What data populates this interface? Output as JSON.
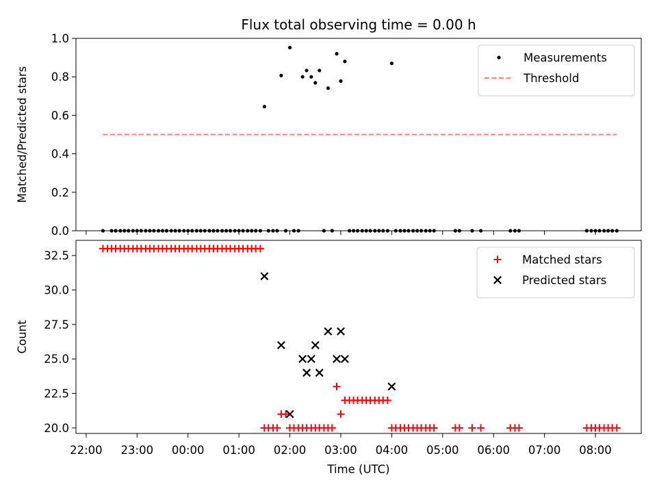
{
  "chart_data": {
    "title": "Flux total observing time = 0.00 h",
    "xlabel": "Time (UTC)",
    "x_tick_labels": [
      "22:00",
      "23:00",
      "00:00",
      "01:00",
      "02:00",
      "03:00",
      "04:00",
      "05:00",
      "06:00",
      "07:00",
      "08:00"
    ],
    "x_ticks_hours": [
      22,
      23,
      24,
      25,
      26,
      27,
      28,
      29,
      30,
      31,
      32
    ],
    "x_range_hours": [
      21.8,
      32.9
    ],
    "panels": [
      {
        "type": "scatter",
        "ylabel": "Matched/Predicted stars",
        "ylim": [
          0.0,
          1.0
        ],
        "y_ticks": [
          0.0,
          0.2,
          0.4,
          0.6,
          0.8,
          1.0
        ],
        "y_tick_labels": [
          "0.0",
          "0.2",
          "0.4",
          "0.6",
          "0.8",
          "1.0"
        ],
        "legend_position": "top-right",
        "series": [
          {
            "name": "Measurements",
            "marker": "dot",
            "color": "#000000",
            "points": [
              [
                22.33,
                0
              ],
              [
                22.5,
                0
              ],
              [
                22.58,
                0
              ],
              [
                22.67,
                0
              ],
              [
                22.75,
                0
              ],
              [
                22.83,
                0
              ],
              [
                22.92,
                0
              ],
              [
                23.0,
                0
              ],
              [
                23.08,
                0
              ],
              [
                23.17,
                0
              ],
              [
                23.25,
                0
              ],
              [
                23.33,
                0
              ],
              [
                23.42,
                0
              ],
              [
                23.5,
                0
              ],
              [
                23.58,
                0
              ],
              [
                23.67,
                0
              ],
              [
                23.75,
                0
              ],
              [
                23.83,
                0
              ],
              [
                23.92,
                0
              ],
              [
                24.0,
                0
              ],
              [
                24.08,
                0
              ],
              [
                24.17,
                0
              ],
              [
                24.25,
                0
              ],
              [
                24.33,
                0
              ],
              [
                24.42,
                0
              ],
              [
                24.5,
                0
              ],
              [
                24.58,
                0
              ],
              [
                24.67,
                0
              ],
              [
                24.75,
                0
              ],
              [
                24.83,
                0
              ],
              [
                24.92,
                0
              ],
              [
                25.0,
                0
              ],
              [
                25.08,
                0
              ],
              [
                25.17,
                0
              ],
              [
                25.25,
                0
              ],
              [
                25.33,
                0
              ],
              [
                25.42,
                0
              ],
              [
                25.5,
                0.645
              ],
              [
                25.58,
                0
              ],
              [
                25.67,
                0
              ],
              [
                25.75,
                0
              ],
              [
                25.83,
                0.807
              ],
              [
                25.92,
                0
              ],
              [
                26.0,
                0.952
              ],
              [
                26.08,
                0
              ],
              [
                26.17,
                0
              ],
              [
                26.25,
                0.8
              ],
              [
                26.33,
                0.833
              ],
              [
                26.42,
                0.8
              ],
              [
                26.5,
                0.769
              ],
              [
                26.58,
                0.833
              ],
              [
                26.67,
                0
              ],
              [
                26.75,
                0.741
              ],
              [
                26.83,
                0
              ],
              [
                26.92,
                0.92
              ],
              [
                27.0,
                0.778
              ],
              [
                27.08,
                0.88
              ],
              [
                27.17,
                0
              ],
              [
                27.25,
                0
              ],
              [
                27.33,
                0
              ],
              [
                27.42,
                0
              ],
              [
                27.5,
                0
              ],
              [
                27.58,
                0
              ],
              [
                27.67,
                0
              ],
              [
                27.75,
                0
              ],
              [
                27.83,
                0
              ],
              [
                27.92,
                0
              ],
              [
                28.0,
                0.87
              ],
              [
                28.08,
                0
              ],
              [
                28.17,
                0
              ],
              [
                28.25,
                0
              ],
              [
                28.33,
                0
              ],
              [
                28.42,
                0
              ],
              [
                28.5,
                0
              ],
              [
                28.58,
                0
              ],
              [
                28.67,
                0
              ],
              [
                28.75,
                0
              ],
              [
                28.83,
                0
              ],
              [
                29.25,
                0
              ],
              [
                29.33,
                0
              ],
              [
                29.58,
                0
              ],
              [
                29.75,
                0
              ],
              [
                30.33,
                0
              ],
              [
                30.42,
                0
              ],
              [
                30.5,
                0
              ],
              [
                31.83,
                0
              ],
              [
                31.92,
                0
              ],
              [
                32.0,
                0
              ],
              [
                32.08,
                0
              ],
              [
                32.17,
                0
              ],
              [
                32.25,
                0
              ],
              [
                32.33,
                0
              ],
              [
                32.42,
                0
              ]
            ]
          },
          {
            "name": "Threshold",
            "type": "line",
            "style": "dashed",
            "color": "#ff7f7f",
            "points": [
              [
                22.33,
                0.5
              ],
              [
                32.42,
                0.5
              ]
            ]
          }
        ]
      },
      {
        "type": "scatter",
        "ylabel": "Count",
        "ylim": [
          19.6,
          33.6
        ],
        "y_ticks": [
          20.0,
          22.5,
          25.0,
          27.5,
          30.0,
          32.5
        ],
        "y_tick_labels": [
          "20.0",
          "22.5",
          "25.0",
          "27.5",
          "30.0",
          "32.5"
        ],
        "legend_position": "top-right",
        "series": [
          {
            "name": "Matched stars",
            "marker": "plus",
            "color": "#ff0000",
            "points": [
              [
                22.33,
                33
              ],
              [
                22.42,
                33
              ],
              [
                22.5,
                33
              ],
              [
                22.58,
                33
              ],
              [
                22.67,
                33
              ],
              [
                22.75,
                33
              ],
              [
                22.83,
                33
              ],
              [
                22.92,
                33
              ],
              [
                23.0,
                33
              ],
              [
                23.08,
                33
              ],
              [
                23.17,
                33
              ],
              [
                23.25,
                33
              ],
              [
                23.33,
                33
              ],
              [
                23.42,
                33
              ],
              [
                23.5,
                33
              ],
              [
                23.58,
                33
              ],
              [
                23.67,
                33
              ],
              [
                23.75,
                33
              ],
              [
                23.83,
                33
              ],
              [
                23.92,
                33
              ],
              [
                24.0,
                33
              ],
              [
                24.08,
                33
              ],
              [
                24.17,
                33
              ],
              [
                24.25,
                33
              ],
              [
                24.33,
                33
              ],
              [
                24.42,
                33
              ],
              [
                24.5,
                33
              ],
              [
                24.58,
                33
              ],
              [
                24.67,
                33
              ],
              [
                24.75,
                33
              ],
              [
                24.83,
                33
              ],
              [
                24.92,
                33
              ],
              [
                25.0,
                33
              ],
              [
                25.08,
                33
              ],
              [
                25.17,
                33
              ],
              [
                25.25,
                33
              ],
              [
                25.33,
                33
              ],
              [
                25.42,
                33
              ],
              [
                25.5,
                20
              ],
              [
                25.58,
                20
              ],
              [
                25.67,
                20
              ],
              [
                25.75,
                20
              ],
              [
                25.83,
                21
              ],
              [
                25.92,
                21
              ],
              [
                26.0,
                20
              ],
              [
                26.08,
                20
              ],
              [
                26.17,
                20
              ],
              [
                26.25,
                20
              ],
              [
                26.33,
                20
              ],
              [
                26.42,
                20
              ],
              [
                26.5,
                20
              ],
              [
                26.58,
                20
              ],
              [
                26.67,
                20
              ],
              [
                26.75,
                20
              ],
              [
                26.83,
                20
              ],
              [
                26.92,
                23
              ],
              [
                27.0,
                21
              ],
              [
                27.08,
                22
              ],
              [
                27.17,
                22
              ],
              [
                27.25,
                22
              ],
              [
                27.33,
                22
              ],
              [
                27.42,
                22
              ],
              [
                27.5,
                22
              ],
              [
                27.58,
                22
              ],
              [
                27.67,
                22
              ],
              [
                27.75,
                22
              ],
              [
                27.83,
                22
              ],
              [
                27.92,
                22
              ],
              [
                28.0,
                20
              ],
              [
                28.08,
                20
              ],
              [
                28.17,
                20
              ],
              [
                28.25,
                20
              ],
              [
                28.33,
                20
              ],
              [
                28.42,
                20
              ],
              [
                28.5,
                20
              ],
              [
                28.58,
                20
              ],
              [
                28.67,
                20
              ],
              [
                28.75,
                20
              ],
              [
                28.83,
                20
              ],
              [
                29.25,
                20
              ],
              [
                29.33,
                20
              ],
              [
                29.58,
                20
              ],
              [
                29.75,
                20
              ],
              [
                30.33,
                20
              ],
              [
                30.42,
                20
              ],
              [
                30.5,
                20
              ],
              [
                31.83,
                20
              ],
              [
                31.92,
                20
              ],
              [
                32.0,
                20
              ],
              [
                32.08,
                20
              ],
              [
                32.17,
                20
              ],
              [
                32.25,
                20
              ],
              [
                32.33,
                20
              ],
              [
                32.42,
                20
              ]
            ]
          },
          {
            "name": "Predicted stars",
            "marker": "x",
            "color": "#000000",
            "points": [
              [
                25.5,
                31
              ],
              [
                25.83,
                26
              ],
              [
                26.0,
                21
              ],
              [
                26.25,
                25
              ],
              [
                26.33,
                24
              ],
              [
                26.42,
                25
              ],
              [
                26.5,
                26
              ],
              [
                26.58,
                24
              ],
              [
                26.75,
                27
              ],
              [
                26.92,
                25
              ],
              [
                27.0,
                27
              ],
              [
                27.08,
                25
              ],
              [
                28.0,
                23
              ]
            ]
          }
        ]
      }
    ]
  }
}
